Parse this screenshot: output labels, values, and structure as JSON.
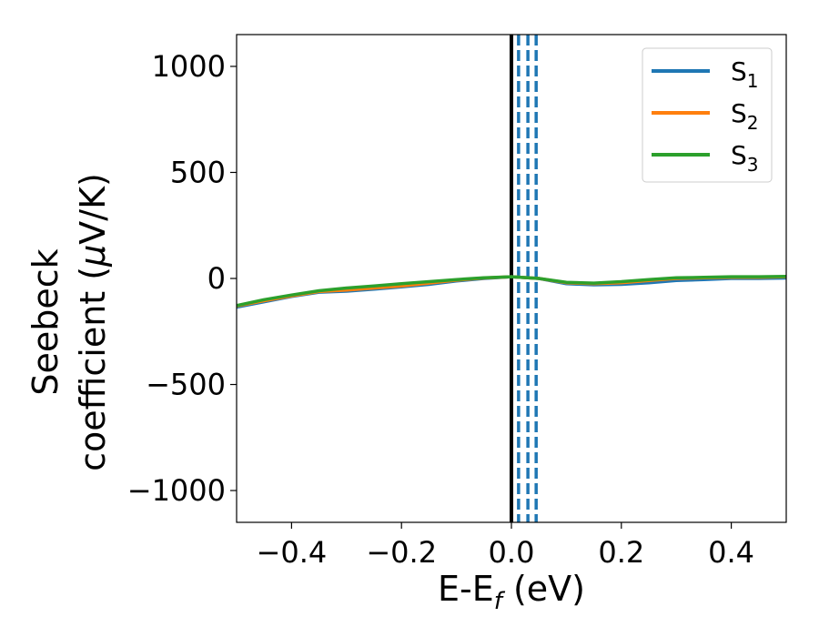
{
  "chart_data": {
    "type": "line",
    "title": "",
    "xlabel": {
      "base": "E-E",
      "sub": "f",
      "unit": " (eV)"
    },
    "ylabel": {
      "line1": "Seebeck",
      "line2": "coefficient  (",
      "mu": "μ",
      "unit": "V/K)"
    },
    "xlim": [
      -0.5,
      0.5
    ],
    "ylim": [
      -1150,
      1150
    ],
    "xticks": [
      -0.4,
      -0.2,
      0.0,
      0.2,
      0.4
    ],
    "xtick_labels": [
      "−0.4",
      "−0.2",
      "0.0",
      "0.2",
      "0.4"
    ],
    "yticks": [
      -1000,
      -500,
      0,
      500,
      1000
    ],
    "ytick_labels": [
      "−1000",
      "−500",
      "0",
      "500",
      "1000"
    ],
    "grid": false,
    "legend": {
      "placement": "top-right"
    },
    "vlines": [
      {
        "x": 0.0,
        "style": "solid",
        "color": "#000000"
      },
      {
        "x": 0.013,
        "style": "dashed",
        "color": "#1f77b4"
      },
      {
        "x": 0.03,
        "style": "dashed",
        "color": "#1f77b4"
      },
      {
        "x": 0.045,
        "style": "dashed",
        "color": "#1f77b4"
      }
    ],
    "series": [
      {
        "name": "S",
        "sub": "1",
        "color": "#1f77b4",
        "x": [
          -0.5,
          -0.45,
          -0.4,
          -0.35,
          -0.3,
          -0.25,
          -0.2,
          -0.15,
          -0.1,
          -0.05,
          0.0,
          0.05,
          0.1,
          0.15,
          0.2,
          0.25,
          0.3,
          0.35,
          0.4,
          0.45,
          0.5
        ],
        "y": [
          -135,
          -110,
          -85,
          -65,
          -60,
          -50,
          -40,
          -28,
          -12,
          0,
          8,
          0,
          -25,
          -30,
          -28,
          -20,
          -10,
          -5,
          0,
          0,
          2
        ]
      },
      {
        "name": "S",
        "sub": "2",
        "color": "#ff7f0e",
        "x": [
          -0.5,
          -0.45,
          -0.4,
          -0.35,
          -0.3,
          -0.25,
          -0.2,
          -0.15,
          -0.1,
          -0.05,
          0.0,
          0.05,
          0.1,
          0.15,
          0.2,
          0.25,
          0.3,
          0.35,
          0.4,
          0.45,
          0.5
        ],
        "y": [
          -130,
          -105,
          -82,
          -62,
          -55,
          -45,
          -35,
          -22,
          -8,
          2,
          8,
          0,
          -20,
          -25,
          -20,
          -10,
          0,
          3,
          5,
          5,
          8
        ]
      },
      {
        "name": "S",
        "sub": "3",
        "color": "#2ca02c",
        "x": [
          -0.5,
          -0.45,
          -0.4,
          -0.35,
          -0.3,
          -0.25,
          -0.2,
          -0.15,
          -0.1,
          -0.05,
          0.0,
          0.05,
          0.1,
          0.15,
          0.2,
          0.25,
          0.3,
          0.35,
          0.4,
          0.45,
          0.5
        ],
        "y": [
          -128,
          -100,
          -78,
          -58,
          -45,
          -35,
          -25,
          -15,
          -5,
          3,
          8,
          0,
          -18,
          -22,
          -15,
          -5,
          3,
          5,
          8,
          8,
          10
        ]
      }
    ]
  }
}
